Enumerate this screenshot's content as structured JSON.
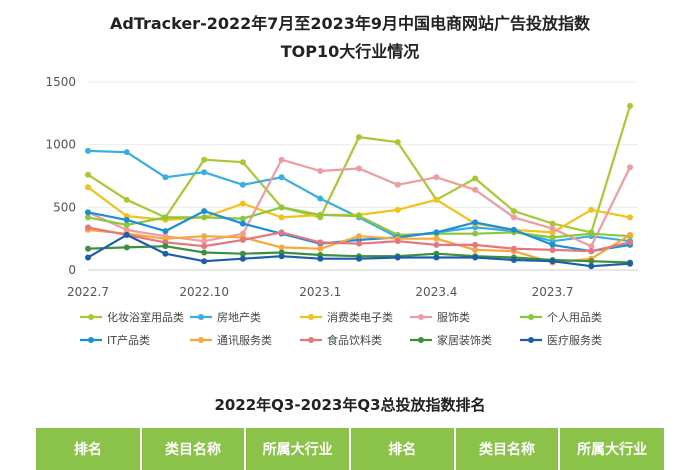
{
  "chart_data": {
    "type": "line",
    "title": "AdTracker-2022年7月至2023年9月中国电商网站广告投放指数",
    "subtitle": "TOP10大行业情况",
    "xlabel": "",
    "ylabel": "",
    "ylim": [
      0,
      1500
    ],
    "yticks": [
      0,
      500,
      1000,
      1500
    ],
    "x": [
      "2022.7",
      "2022.8",
      "2022.9",
      "2022.10",
      "2022.11",
      "2022.12",
      "2023.1",
      "2023.2",
      "2023.3",
      "2023.4",
      "2023.5",
      "2023.6",
      "2023.7",
      "2023.8",
      "2023.9"
    ],
    "xtick_labels": [
      "2022.7",
      "2022.10",
      "2023.1",
      "2023.4",
      "2023.7"
    ],
    "legend_position": "bottom",
    "series": [
      {
        "name": "化妆浴室用品类",
        "color": "#a8c834",
        "values": [
          760,
          560,
          420,
          880,
          860,
          500,
          420,
          1060,
          1020,
          560,
          730,
          470,
          370,
          300,
          1310
        ]
      },
      {
        "name": "房地产类",
        "color": "#3aaee0",
        "values": [
          950,
          940,
          740,
          780,
          680,
          740,
          570,
          420,
          260,
          300,
          340,
          310,
          230,
          270,
          230
        ]
      },
      {
        "name": "消费类电子类",
        "color": "#f2c21a",
        "values": [
          660,
          430,
          400,
          420,
          530,
          420,
          440,
          440,
          480,
          560,
          370,
          320,
          300,
          480,
          420
        ]
      },
      {
        "name": "服饰类",
        "color": "#ee9ba2",
        "values": [
          460,
          320,
          270,
          230,
          290,
          880,
          790,
          810,
          680,
          740,
          640,
          420,
          330,
          190,
          820
        ]
      },
      {
        "name": "个人用品类",
        "color": "#8cc63f",
        "values": [
          420,
          360,
          420,
          420,
          410,
          500,
          440,
          430,
          280,
          290,
          290,
          300,
          260,
          290,
          270
        ]
      },
      {
        "name": "IT产品类",
        "color": "#1a8fd8",
        "values": [
          460,
          400,
          310,
          470,
          370,
          290,
          210,
          240,
          260,
          300,
          380,
          320,
          200,
          150,
          200
        ]
      },
      {
        "name": "通讯服务类",
        "color": "#f7a83a",
        "values": [
          320,
          290,
          250,
          270,
          260,
          180,
          170,
          270,
          250,
          250,
          160,
          150,
          60,
          90,
          280
        ]
      },
      {
        "name": "食品饮料类",
        "color": "#e4767c",
        "values": [
          340,
          280,
          220,
          190,
          240,
          300,
          220,
          210,
          230,
          200,
          200,
          170,
          160,
          150,
          220
        ]
      },
      {
        "name": "家居装饰类",
        "color": "#3c8f3c",
        "values": [
          170,
          180,
          190,
          140,
          130,
          140,
          120,
          110,
          110,
          130,
          110,
          100,
          80,
          70,
          60
        ]
      },
      {
        "name": "医疗服务类",
        "color": "#1c5fa8",
        "values": [
          100,
          280,
          130,
          70,
          90,
          110,
          90,
          90,
          100,
          100,
          100,
          80,
          70,
          30,
          50
        ]
      }
    ]
  },
  "ranking": {
    "title": "2022年Q3-2023年Q3总投放指数排名",
    "headers": [
      "排名",
      "类目名称",
      "所属大行业",
      "排名",
      "类目名称",
      "所属大行业"
    ]
  }
}
